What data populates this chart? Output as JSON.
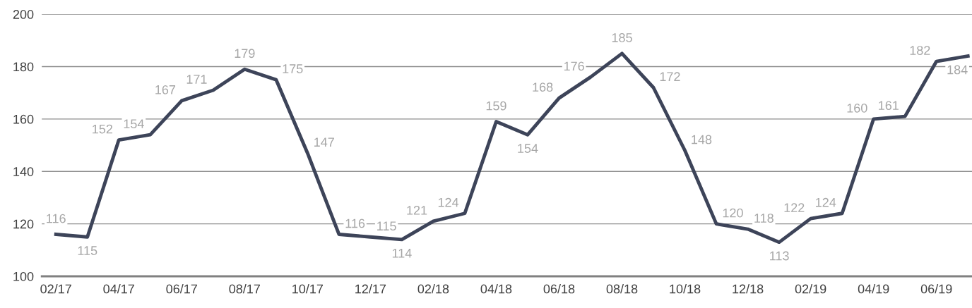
{
  "chart_data": {
    "type": "line",
    "categories": [
      "02/17",
      null,
      "04/17",
      null,
      "06/17",
      null,
      "08/17",
      null,
      "10/17",
      null,
      "12/17",
      null,
      "02/18",
      null,
      "04/18",
      null,
      "06/18",
      null,
      "08/18",
      null,
      "10/18",
      null,
      "12/18",
      null,
      "02/19",
      null,
      "04/19",
      null,
      "06/19",
      null
    ],
    "series": [
      {
        "color": "#3d4459",
        "values": [
          116,
          115,
          152,
          154,
          167,
          171,
          179,
          175,
          147,
          116,
          115,
          114,
          121,
          124,
          159,
          154,
          168,
          176,
          185,
          172,
          148,
          120,
          118,
          113,
          122,
          124,
          160,
          161,
          182,
          184
        ]
      }
    ],
    "ylim": [
      100,
      200
    ],
    "yticks": [
      100,
      120,
      140,
      160,
      180,
      200
    ],
    "grid": "y",
    "data_labels": true,
    "legend": false,
    "marker": "none",
    "line_style": "solid"
  }
}
